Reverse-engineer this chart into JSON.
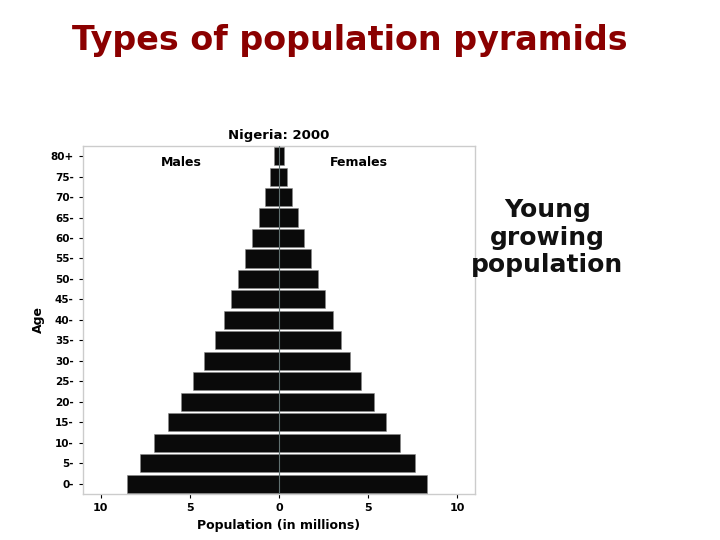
{
  "title": "Types of population pyramids",
  "chart_title": "Nigeria: 2000",
  "xlabel": "Population (in millions)",
  "ylabel": "Age",
  "males_label": "Males",
  "females_label": "Females",
  "title_color": "#8B0000",
  "bar_color": "#0a0a0a",
  "bar_edge_color": "#888888",
  "background_color": "#ffffff",
  "annotation_text": "Young\ngrowing\npopulation",
  "annotation_fontsize": 18,
  "age_groups": [
    "0-",
    "5-",
    "10-",
    "15-",
    "20-",
    "25-",
    "30-",
    "35-",
    "40-",
    "45-",
    "50-",
    "55-",
    "60-",
    "65-",
    "70-",
    "75-",
    "80+"
  ],
  "males": [
    8.5,
    7.8,
    7.0,
    6.2,
    5.5,
    4.8,
    4.2,
    3.6,
    3.1,
    2.7,
    2.3,
    1.9,
    1.5,
    1.1,
    0.8,
    0.5,
    0.3
  ],
  "females": [
    8.3,
    7.6,
    6.8,
    6.0,
    5.3,
    4.6,
    4.0,
    3.5,
    3.0,
    2.6,
    2.2,
    1.8,
    1.4,
    1.05,
    0.75,
    0.45,
    0.28
  ],
  "xlim": 11,
  "sidebar_color": "#7a1020",
  "bottom_bar_color": "#9aA8B0",
  "center_line_color": "#607070",
  "chart_box_color": "#cccccc"
}
